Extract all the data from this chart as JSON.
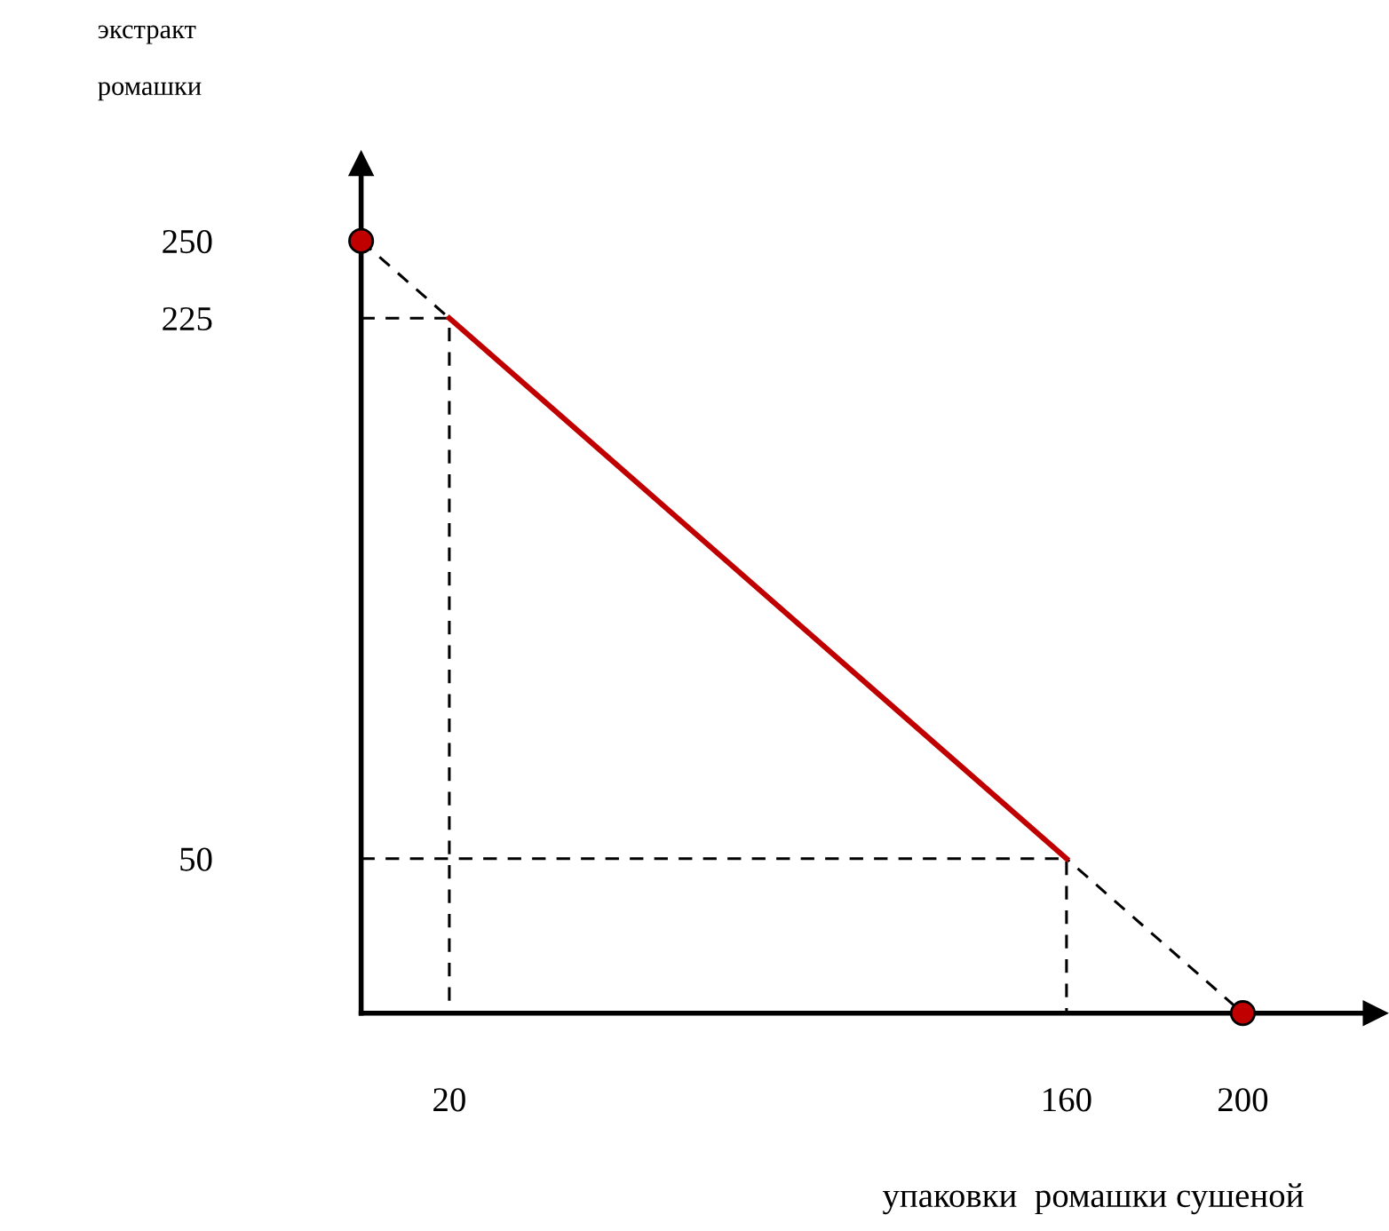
{
  "chart_data": {
    "type": "line",
    "ylabel": "экстракт\n\nромашки",
    "xlabel": "упаковки  ромашки сушеной",
    "xlim": [
      0,
      230
    ],
    "ylim": [
      0,
      275
    ],
    "xticks": [
      20,
      160,
      200
    ],
    "yticks": [
      50,
      225,
      250
    ],
    "grid": false,
    "legend": false,
    "series": [
      {
        "x": [
          0,
          200
        ],
        "values": [
          250,
          0
        ],
        "color": "#000000",
        "line_style": "dashed",
        "marker": "none"
      },
      {
        "x": [
          0,
          20,
          20
        ],
        "values": [
          225,
          225,
          0
        ],
        "color": "#000000",
        "line_style": "dashed",
        "marker": "none"
      },
      {
        "x": [
          0,
          160,
          160
        ],
        "values": [
          50,
          50,
          0
        ],
        "color": "#000000",
        "line_style": "dashed",
        "marker": "none"
      },
      {
        "x": [
          20,
          160
        ],
        "values": [
          225,
          50
        ],
        "color": "#c00000",
        "line_style": "solid",
        "marker": "none"
      },
      {
        "type": "scatter",
        "x": [
          0,
          200
        ],
        "values": [
          250,
          0
        ],
        "color": "#c00000",
        "marker": "circle"
      }
    ]
  }
}
